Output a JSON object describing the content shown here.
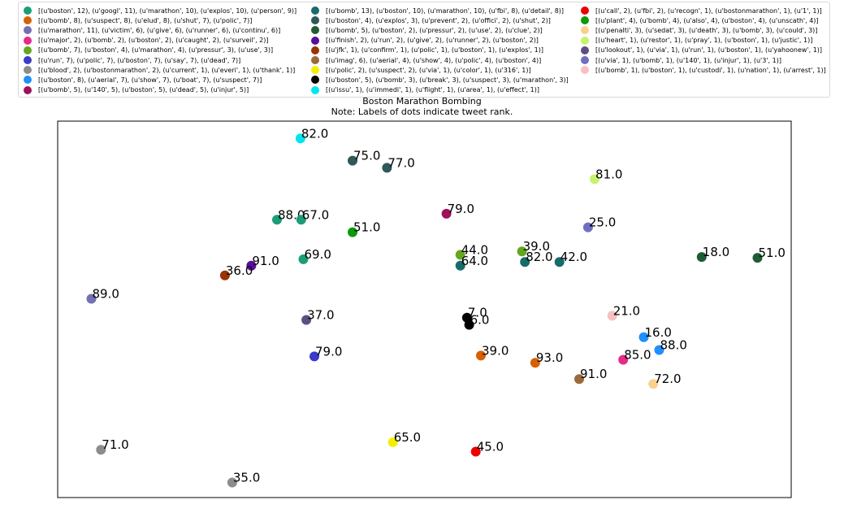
{
  "chart_data": {
    "type": "scatter",
    "title": "Boston Marathon Bombing",
    "subtitle": "Note: Labels of dots indicate tweet rank.",
    "xlabel": "",
    "ylabel": "",
    "grid": false,
    "legend_placement": "top",
    "xlim": [
      0,
      1000
    ],
    "ylim": [
      0,
      1000
    ],
    "series": [
      {
        "name": "[(u'boston', 12), (u'googl', 11), (u'marathon', 10), (u'explos', 10), (u'person', 9)]",
        "color": "#1b9e77",
        "points": [
          {
            "x": 299,
            "y": 738,
            "label": "88.0"
          },
          {
            "x": 332,
            "y": 738,
            "label": "67.0"
          },
          {
            "x": 335,
            "y": 633,
            "label": "69.0"
          }
        ]
      },
      {
        "name": "[(u'bomb', 8), (u'suspect', 8), (u'elud', 8), (u'shut', 7), (u'polic', 7)]",
        "color": "#d95f02",
        "points": [
          {
            "x": 577,
            "y": 377,
            "label": "39.0"
          },
          {
            "x": 651,
            "y": 358,
            "label": "93.0"
          }
        ]
      },
      {
        "name": "[(u'marathon', 11), (u'victim', 6), (u'give', 6), (u'runner', 6), (u'continu', 6)]",
        "color": "#7570b3",
        "points": [
          {
            "x": 46,
            "y": 528,
            "label": "89.0"
          }
        ]
      },
      {
        "name": "[(u'major', 2), (u'bomb', 2), (u'boston', 2), (u'caught', 2), (u'surveil', 2)]",
        "color": "#e7298a",
        "points": [
          {
            "x": 771,
            "y": 366,
            "label": "85.0"
          }
        ]
      },
      {
        "name": "[(u'bomb', 7), (u'boston', 4), (u'marathon', 4), (u'pressur', 3), (u'use', 3)]",
        "color": "#66a61e",
        "points": [
          {
            "x": 549,
            "y": 645,
            "label": "44.0"
          },
          {
            "x": 633,
            "y": 654,
            "label": "39.0"
          }
        ]
      },
      {
        "name": "[(u'run', 7), (u'polic', 7), (u'boston', 7), (u'say', 7), (u'dead', 7)]",
        "color": "#3a3acb",
        "points": [
          {
            "x": 350,
            "y": 375,
            "label": "79.0"
          }
        ]
      },
      {
        "name": "[(u'blood', 2), (u'bostonmarathon', 2), (u'current', 1), (u'everi', 1), (u'thank', 1)]",
        "color": "#8c8c8c",
        "points": [
          {
            "x": 59,
            "y": 127,
            "label": "71.0"
          },
          {
            "x": 238,
            "y": 40,
            "label": "35.0"
          }
        ]
      },
      {
        "name": "[(u'boston', 8), (u'aerial', 7), (u'show', 7), (u'boat', 7), (u'suspect', 7)]",
        "color": "#1e90ff",
        "points": [
          {
            "x": 799,
            "y": 426,
            "label": "16.0"
          },
          {
            "x": 820,
            "y": 392,
            "label": "88.0"
          }
        ]
      },
      {
        "name": "[(u'bomb', 5), (u'140', 5), (u'boston', 5), (u'dead', 5), (u'injur', 5)]",
        "color": "#a0105a",
        "points": [
          {
            "x": 530,
            "y": 754,
            "label": "79.0"
          }
        ]
      },
      {
        "name": "[(u'bomb', 13), (u'boston', 10), (u'marathon', 10), (u'fbi', 8), (u'detail', 8)]",
        "color": "#176b6b",
        "points": [
          {
            "x": 549,
            "y": 616,
            "label": "64.0"
          },
          {
            "x": 637,
            "y": 626,
            "label": "82.0"
          },
          {
            "x": 684,
            "y": 626,
            "label": "42.0"
          }
        ]
      },
      {
        "name": "[(u'boston', 4), (u'explos', 3), (u'prevent', 2), (u'offici', 2), (u'shut', 2)]",
        "color": "#2f5858",
        "points": [
          {
            "x": 402,
            "y": 895,
            "label": "75.0"
          },
          {
            "x": 449,
            "y": 876,
            "label": "77.0"
          }
        ]
      },
      {
        "name": "[(u'bomb', 5), (u'boston', 2), (u'pressur', 2), (u'use', 2), (u'clue', 2)]",
        "color": "#1f5c36",
        "points": [
          {
            "x": 878,
            "y": 639,
            "label": "18.0"
          },
          {
            "x": 954,
            "y": 637,
            "label": "51.0"
          }
        ]
      },
      {
        "name": "[(u'finish', 2), (u'run', 2), (u'give', 2), (u'runner', 2), (u'boston', 2)]",
        "color": "#5a0c9c",
        "points": [
          {
            "x": 264,
            "y": 616,
            "label": "91.0"
          }
        ]
      },
      {
        "name": "[(u'jfk', 1), (u'confirm', 1), (u'polic', 1), (u'boston', 1), (u'explos', 1)]",
        "color": "#993404",
        "points": [
          {
            "x": 228,
            "y": 590,
            "label": "36.0"
          }
        ]
      },
      {
        "name": "[(u'imag', 6), (u'aerial', 4), (u'show', 4), (u'polic', 4), (u'boston', 4)]",
        "color": "#9b6a3b",
        "points": [
          {
            "x": 711,
            "y": 315,
            "label": "91.0"
          }
        ]
      },
      {
        "name": "[(u'polic', 2), (u'suspect', 2), (u'via', 1), (u'color', 1), (u'316', 1)]",
        "color": "#f5ee00",
        "points": [
          {
            "x": 457,
            "y": 147,
            "label": "65.0"
          }
        ]
      },
      {
        "name": "[(u'boston', 5), (u'bomb', 3), (u'break', 3), (u'suspect', 3), (u'marathon', 3)]",
        "color": "#000000",
        "points": [
          {
            "x": 558,
            "y": 478,
            "label": "7.0"
          },
          {
            "x": 561,
            "y": 459,
            "label": "6.0"
          }
        ]
      },
      {
        "name": "[(u'issu', 1), (u'immedi', 1), (u'flight', 1), (u'area', 1), (u'effect', 1)]",
        "color": "#00e5ee",
        "points": [
          {
            "x": 331,
            "y": 954,
            "label": "82.0"
          }
        ]
      },
      {
        "name": "[(u'call', 2), (u'fbi', 2), (u'recogn', 1), (u'bostonmarathon', 1), (u'1', 1)]",
        "color": "#ee0000",
        "points": [
          {
            "x": 570,
            "y": 122,
            "label": "45.0"
          }
        ]
      },
      {
        "name": "[(u'plant', 4), (u'bomb', 4), (u'also', 4), (u'boston', 4), (u'unscath', 4)]",
        "color": "#0a9a0a",
        "points": [
          {
            "x": 402,
            "y": 705,
            "label": "51.0"
          }
        ]
      },
      {
        "name": "[(u'penalti', 3), (u'sedat', 3), (u'death', 3), (u'bomb', 3), (u'could', 3)]",
        "color": "#fdcf8f",
        "points": [
          {
            "x": 812,
            "y": 302,
            "label": "72.0"
          }
        ]
      },
      {
        "name": "[(u'heart', 1), (u'restor', 1), (u'pray', 1), (u'boston', 1), (u'justic', 1)]",
        "color": "#c6f26e",
        "points": [
          {
            "x": 732,
            "y": 846,
            "label": "81.0"
          }
        ]
      },
      {
        "name": "[(u'lookout', 1), (u'via', 1), (u'run', 1), (u'boston', 1), (u'yahoonew', 1)]",
        "color": "#5e4f80",
        "points": [
          {
            "x": 339,
            "y": 472,
            "label": "37.0"
          }
        ]
      },
      {
        "name": "[(u'via', 1), (u'bomb', 1), (u'140', 1), (u'injur', 1), (u'3', 1)]",
        "color": "#6f6fc2",
        "points": [
          {
            "x": 723,
            "y": 718,
            "label": "25.0"
          }
        ]
      },
      {
        "name": "[(u'bomb', 1), (u'boston', 1), (u'custodi', 1), (u'nation', 1), (u'arrest', 1)]",
        "color": "#f9c0c0",
        "points": [
          {
            "x": 756,
            "y": 483,
            "label": "21.0"
          }
        ]
      }
    ]
  }
}
